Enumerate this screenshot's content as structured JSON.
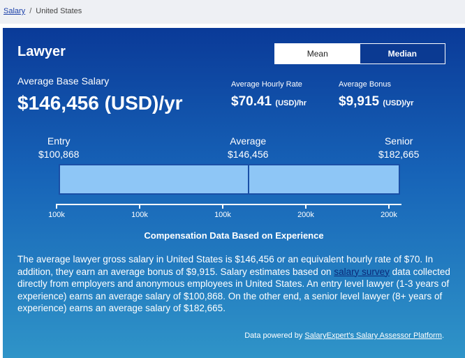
{
  "breadcrumb": {
    "link": "Salary",
    "separator": "/",
    "current": "United States"
  },
  "card": {
    "title": "Lawyer",
    "toggle": {
      "mean": "Mean",
      "median": "Median",
      "selected": "Median"
    },
    "average_base": {
      "label": "Average Base Salary",
      "value": "$146,456 (USD)/yr"
    },
    "hourly": {
      "label": "Average Hourly Rate",
      "amount": "$70.41",
      "unit": "(USD)/hr"
    },
    "bonus": {
      "label": "Average Bonus",
      "amount": "$9,915",
      "unit": "(USD)/yr"
    },
    "levels": {
      "entry": {
        "label": "Entry",
        "value": "$100,868"
      },
      "average": {
        "label": "Average",
        "value": "$146,456"
      },
      "senior": {
        "label": "Senior",
        "value": "$182,665"
      }
    },
    "axis_ticks": [
      "100k",
      "100k",
      "100k",
      "200k",
      "200k"
    ],
    "chart_title": "Compensation Data Based on Experience",
    "description": {
      "before_link": "The average lawyer gross salary in United States is $146,456 or an equivalent hourly rate of $70. In addition, they earn an average bonus of $9,915. Salary estimates based on ",
      "link": "salary survey",
      "after_link": " data collected directly from employers and anonymous employees in United States. An entry level lawyer (1-3 years of experience) earns an average salary of $100,868. On the other end, a senior level lawyer (8+ years of experience) earns an average salary of $182,665."
    },
    "powered_by": {
      "prefix": "Data powered by ",
      "link": "SalaryExpert's Salary Assessor Platform",
      "suffix": "."
    },
    "colors": {
      "gradient_top": "#0a3a98",
      "gradient_bottom": "#2f94c8",
      "bar_fill": "#8ec6f6",
      "bar_border": "#1a4fa6"
    }
  }
}
